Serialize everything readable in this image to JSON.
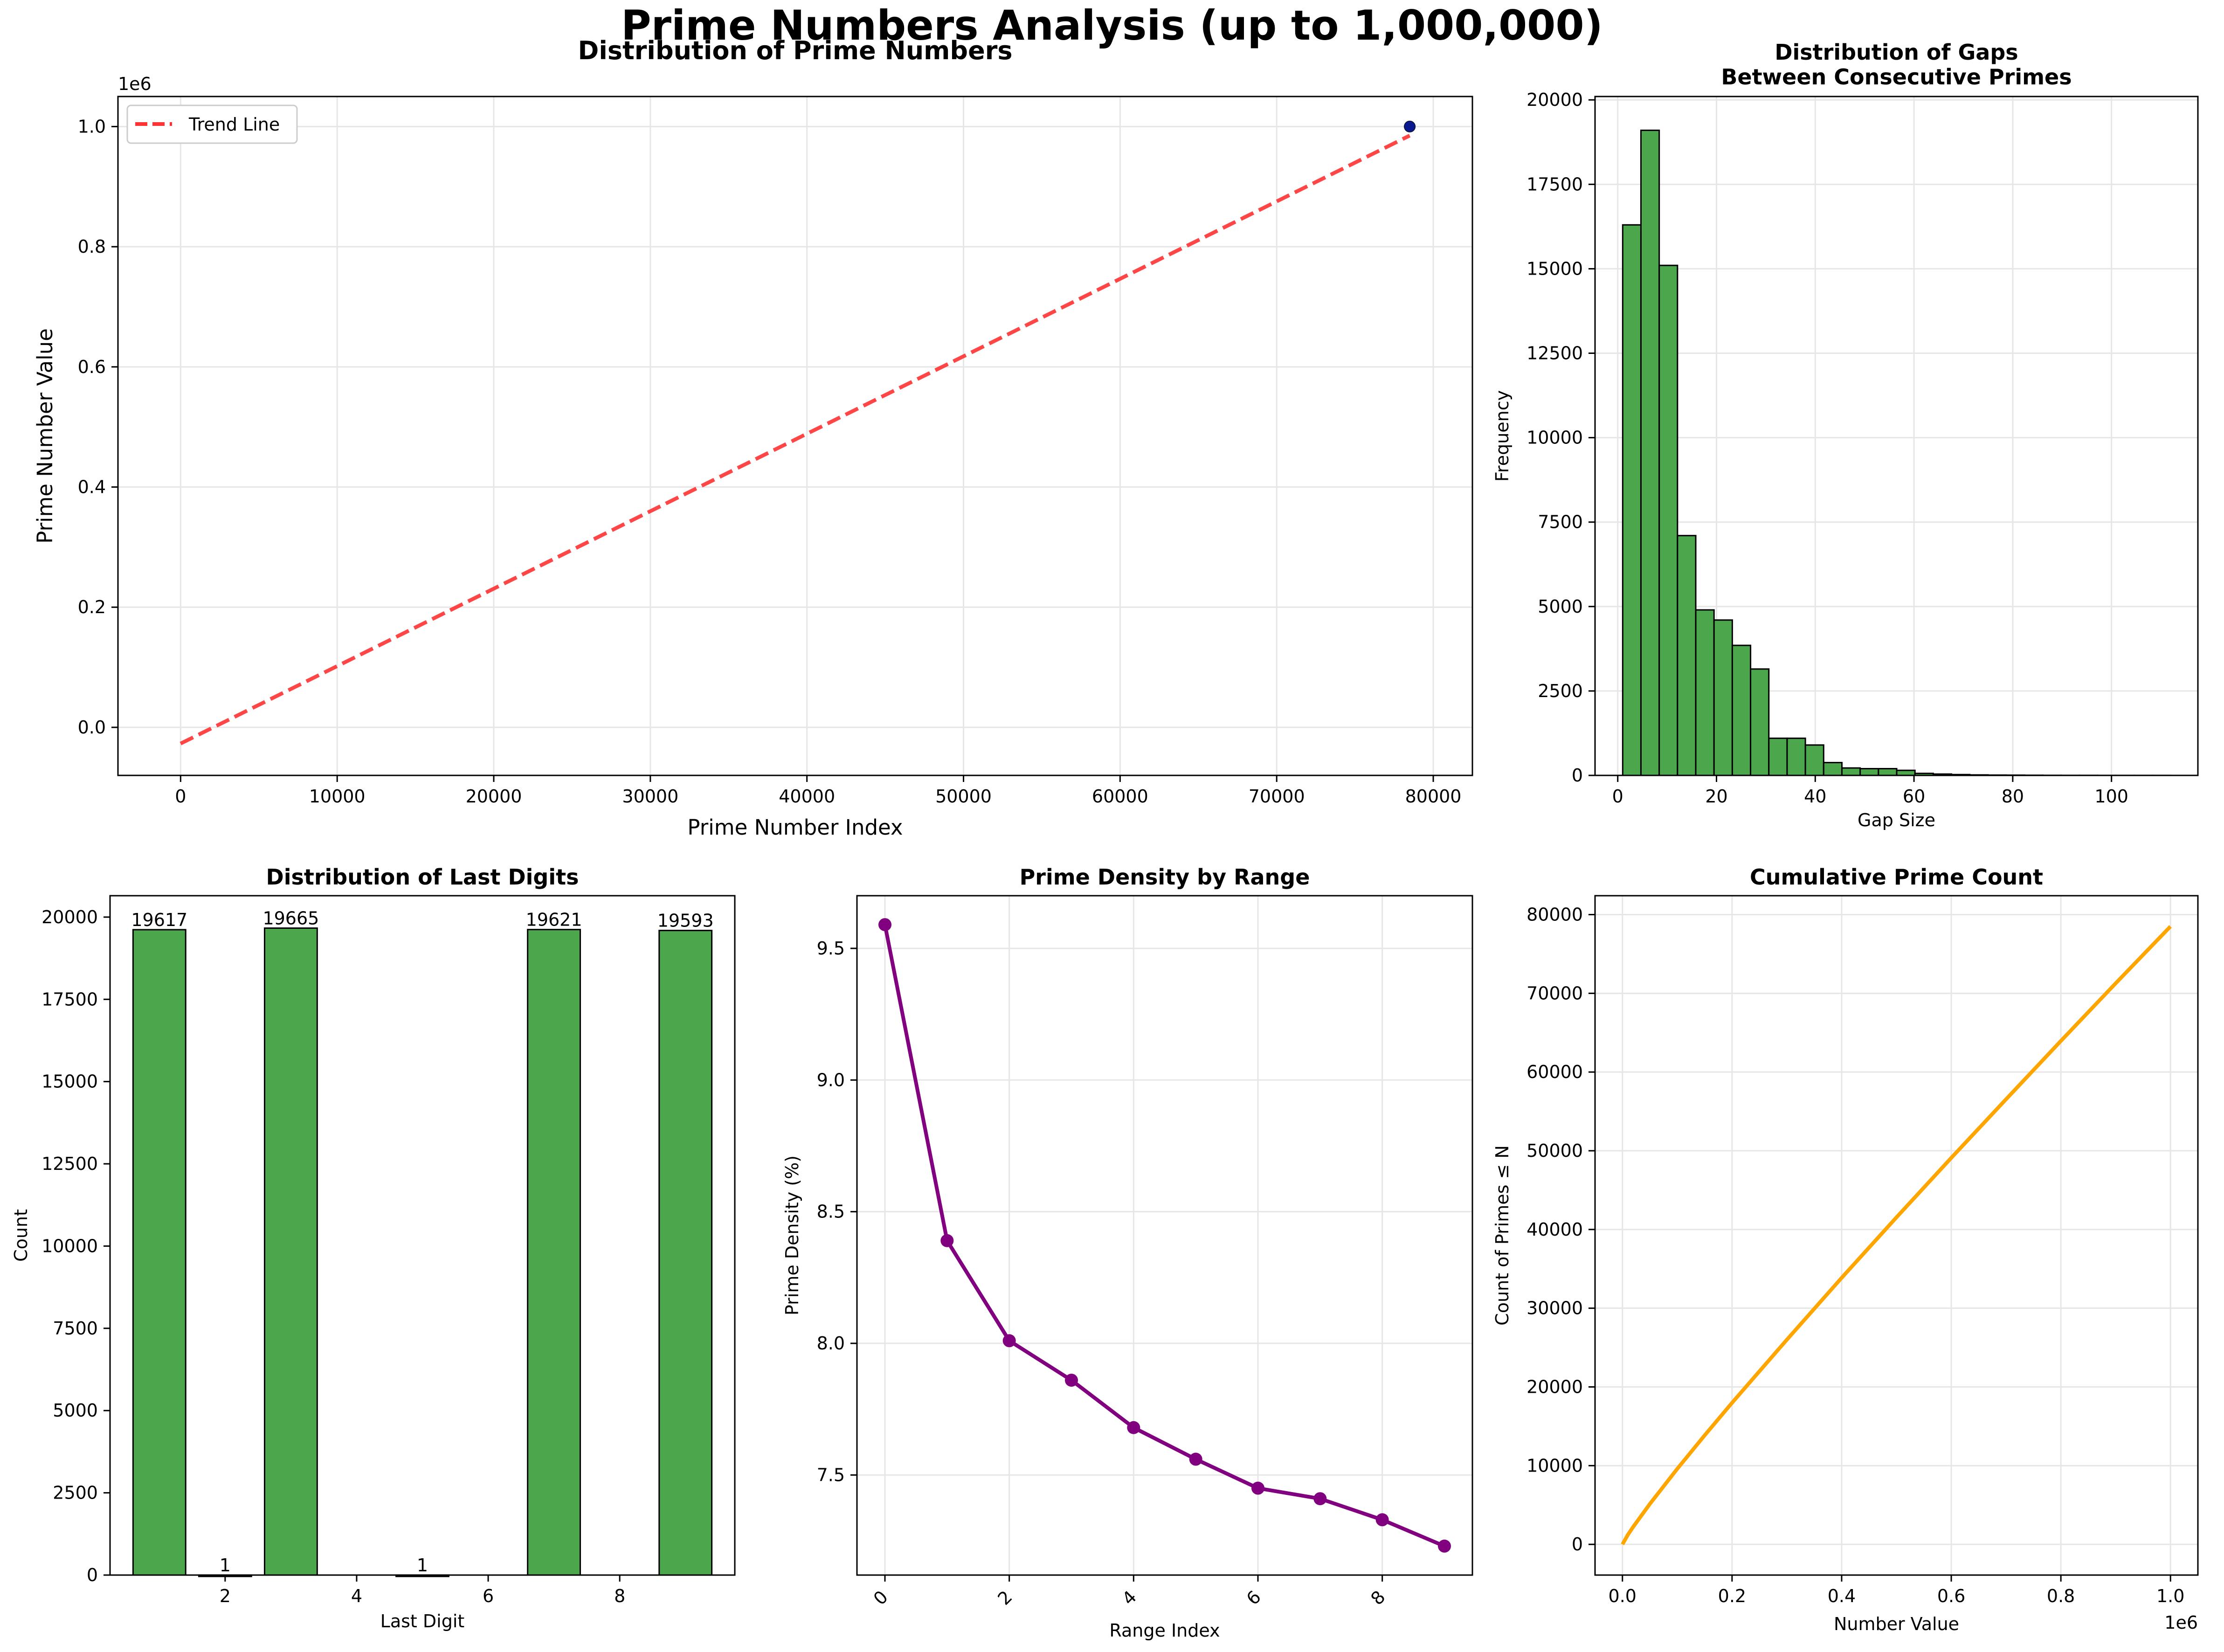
{
  "figure": {
    "suptitle": "Prime Numbers Analysis (up to 1,000,000)"
  },
  "colors": {
    "trend": "#ff3333",
    "scatter_point": "#0a1a8c",
    "histogram": "#4ca64c",
    "bars": "#4ca64c",
    "density": "#800080",
    "cumulative": "#ffa500",
    "grid": "#e6e6e6"
  },
  "chart_data": [
    {
      "type": "line",
      "title": "Distribution of Prime Numbers",
      "xlabel": "Prime Number Index",
      "ylabel": "Prime Number Value",
      "offset_label": "1e6",
      "xlim": [
        -4000,
        82500
      ],
      "ylim": [
        -0.08,
        1.05
      ],
      "xticks": [
        0,
        10000,
        20000,
        30000,
        40000,
        50000,
        60000,
        70000,
        80000
      ],
      "yticks": [
        0.0,
        0.2,
        0.4,
        0.6,
        0.8,
        1.0
      ],
      "xtick_labels": [
        "0",
        "10000",
        "20000",
        "30000",
        "40000",
        "50000",
        "60000",
        "70000",
        "80000"
      ],
      "ytick_labels": [
        "0.0",
        "0.2",
        "0.4",
        "0.6",
        "0.8",
        "1.0"
      ],
      "grid": true,
      "legend": {
        "position": "upper-left",
        "entries": [
          "Trend Line"
        ]
      },
      "series": [
        {
          "name": "Trend Line",
          "style": "dashed",
          "x": [
            0,
            78498
          ],
          "y": [
            -0.027,
            0.985
          ]
        }
      ],
      "points": [
        {
          "x": 78498,
          "y": 1.0
        }
      ]
    },
    {
      "type": "bar",
      "title": "Distribution of Gaps\nBetween Consecutive Primes",
      "xlabel": "Gap Size",
      "ylabel": "Frequency",
      "xlim": [
        -4.6,
        117.5
      ],
      "ylim": [
        0,
        20100
      ],
      "xticks": [
        0,
        20,
        40,
        60,
        80,
        100
      ],
      "yticks": [
        0,
        2500,
        5000,
        7500,
        10000,
        12500,
        15000,
        17500,
        20000
      ],
      "xtick_labels": [
        "0",
        "20",
        "40",
        "60",
        "80",
        "100"
      ],
      "ytick_labels": [
        "0",
        "2500",
        "5000",
        "7500",
        "10000",
        "12500",
        "15000",
        "17500",
        "20000"
      ],
      "grid": true,
      "bin_start": 1,
      "bin_width": 3.7,
      "values": [
        16300,
        19100,
        15100,
        7100,
        4900,
        4600,
        3850,
        3150,
        1100,
        1100,
        900,
        380,
        220,
        200,
        200,
        150,
        60,
        40,
        25,
        15,
        10,
        8,
        5,
        3,
        2,
        2,
        1,
        1,
        1,
        1
      ]
    },
    {
      "type": "bar",
      "title": "Distribution of Last Digits",
      "xlabel": "Last Digit",
      "ylabel": "Count",
      "xlim": [
        0.25,
        9.75
      ],
      "ylim": [
        0,
        20650
      ],
      "xticks": [
        2,
        4,
        6,
        8
      ],
      "yticks": [
        0,
        2500,
        5000,
        7500,
        10000,
        12500,
        15000,
        17500,
        20000
      ],
      "xtick_labels": [
        "2",
        "4",
        "6",
        "8"
      ],
      "ytick_labels": [
        "0",
        "2500",
        "5000",
        "7500",
        "10000",
        "12500",
        "15000",
        "17500",
        "20000"
      ],
      "grid": false,
      "categories": [
        1,
        2,
        3,
        5,
        7,
        9
      ],
      "values": [
        19617,
        1,
        19665,
        1,
        19621,
        19593
      ],
      "labels": [
        "19617",
        "1",
        "19665",
        "1",
        "19621",
        "19593"
      ]
    },
    {
      "type": "line",
      "title": "Prime Density by Range",
      "xlabel": "Range Index",
      "ylabel": "Prime Density (%)",
      "xlim": [
        -0.45,
        9.45
      ],
      "ylim": [
        7.12,
        9.7
      ],
      "xticks": [
        0,
        2,
        4,
        6,
        8
      ],
      "yticks": [
        7.5,
        8.0,
        8.5,
        9.0,
        9.5
      ],
      "xtick_labels": [
        "0",
        "2",
        "4",
        "6",
        "8"
      ],
      "ytick_labels": [
        "7.5",
        "8.0",
        "8.5",
        "9.0",
        "9.5"
      ],
      "grid": true,
      "x": [
        0,
        1,
        2,
        3,
        4,
        5,
        6,
        7,
        8,
        9
      ],
      "y": [
        9.59,
        8.39,
        8.01,
        7.86,
        7.68,
        7.56,
        7.45,
        7.41,
        7.33,
        7.23
      ]
    },
    {
      "type": "line",
      "title": "Cumulative Prime Count",
      "xlabel": "Number Value",
      "ylabel": "Count of Primes ≤ N",
      "offset_label": "1e6",
      "xlim": [
        -0.05,
        1.05
      ],
      "ylim": [
        -3900,
        82400
      ],
      "xticks": [
        0.0,
        0.2,
        0.4,
        0.6,
        0.8,
        1.0
      ],
      "yticks": [
        0,
        10000,
        20000,
        30000,
        40000,
        50000,
        60000,
        70000,
        80000
      ],
      "xtick_labels": [
        "0.0",
        "0.2",
        "0.4",
        "0.6",
        "0.8",
        "1.0"
      ],
      "ytick_labels": [
        "0",
        "10000",
        "20000",
        "30000",
        "40000",
        "50000",
        "60000",
        "70000",
        "80000"
      ],
      "grid": true,
      "x": [
        0.0,
        0.01,
        0.02,
        0.05,
        0.1,
        0.15,
        0.2,
        0.3,
        0.4,
        0.5,
        0.6,
        0.7,
        0.8,
        0.9,
        1.0
      ],
      "y": [
        0,
        1229,
        2262,
        5133,
        9592,
        13848,
        17984,
        25997,
        33860,
        41538,
        49098,
        56543,
        63951,
        71274,
        78498
      ]
    }
  ]
}
